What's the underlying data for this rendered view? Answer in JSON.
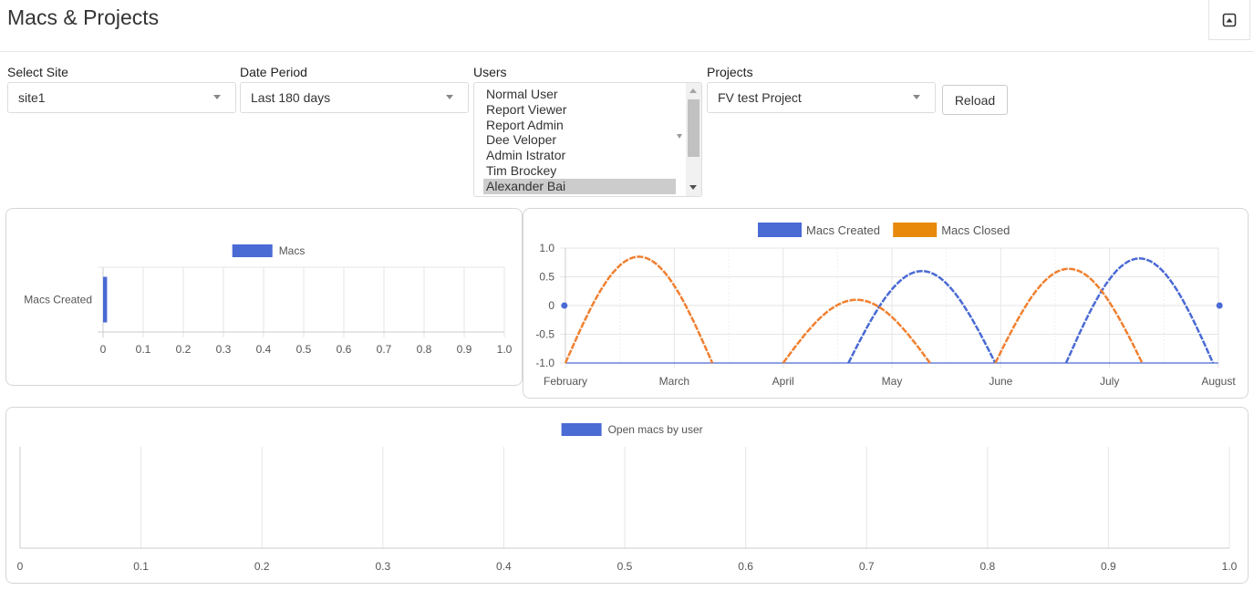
{
  "header": {
    "title": "Macs & Projects",
    "collapse_icon": "collapse-up-icon"
  },
  "filters": {
    "site": {
      "label": "Select Site",
      "value": "site1"
    },
    "date_period": {
      "label": "Date Period",
      "value": "Last 180 days"
    },
    "users": {
      "label": "Users",
      "items": [
        "Normal User",
        "Report Viewer",
        "Report Admin",
        "Dee Veloper",
        "Admin Istrator",
        "Tim Brockey",
        "Alexander Bai"
      ],
      "selected_index": 6
    },
    "projects": {
      "label": "Projects",
      "value": "FV test Project"
    },
    "reload_label": "Reload"
  },
  "colors": {
    "blue": "#4a6ad4",
    "orange": "#f08030",
    "legend_orange": "#e8890c",
    "grid": "#e5e5e5",
    "text": "#555555"
  },
  "chart_data": [
    {
      "type": "bar",
      "orientation": "horizontal",
      "categories": [
        "Macs Created"
      ],
      "series": [
        {
          "name": "Macs",
          "values": [
            0.01
          ]
        }
      ],
      "xlim": [
        0,
        1.0
      ],
      "xticks": [
        "0",
        "0.1",
        "0.2",
        "0.3",
        "0.4",
        "0.5",
        "0.6",
        "0.7",
        "0.8",
        "0.9",
        "1.0"
      ],
      "legend": "top",
      "grid": true
    },
    {
      "type": "line",
      "x_labels": [
        "February",
        "March",
        "April",
        "May",
        "June",
        "July",
        "August"
      ],
      "ylim": [
        -1.0,
        1.0
      ],
      "yticks": [
        "1.0",
        "0.5",
        "0",
        "-0.5",
        "-1.0"
      ],
      "series": [
        {
          "name": "Macs Created",
          "color": "#4a6ad4",
          "segments": [
            {
              "start_month": 2.6,
              "end_month": 3.95,
              "peak": 0.6
            },
            {
              "start_month": 4.6,
              "end_month": 5.95,
              "peak": 0.82
            }
          ],
          "points": [
            {
              "month": -0.01,
              "value": 0
            },
            {
              "month": 6.01,
              "value": 0
            }
          ]
        },
        {
          "name": "Macs Closed",
          "color": "#f08030",
          "segments": [
            {
              "start_month": 0.0,
              "end_month": 1.35,
              "peak": 0.85
            },
            {
              "start_month": 2.0,
              "end_month": 3.35,
              "peak": 0.1
            },
            {
              "start_month": 3.95,
              "end_month": 5.3,
              "peak": 0.64
            }
          ]
        }
      ],
      "legend": "top",
      "grid": true
    },
    {
      "type": "bar",
      "orientation": "horizontal",
      "categories": [],
      "series": [
        {
          "name": "Open macs by user",
          "values": []
        }
      ],
      "xlim": [
        0,
        1.0
      ],
      "xticks": [
        "0",
        "0.1",
        "0.2",
        "0.3",
        "0.4",
        "0.5",
        "0.6",
        "0.7",
        "0.8",
        "0.9",
        "1.0"
      ],
      "legend": "top",
      "grid": true
    }
  ]
}
